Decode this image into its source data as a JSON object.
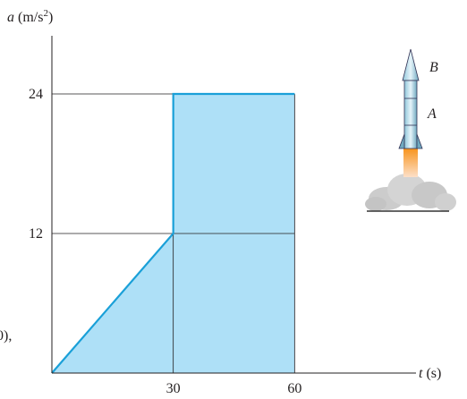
{
  "chart_data": {
    "type": "area",
    "y_label": [
      "a",
      "(m/s",
      "2",
      ")"
    ],
    "x_label": [
      "t",
      "(s)"
    ],
    "x": [
      0,
      30,
      30,
      60
    ],
    "values": [
      0,
      12,
      24,
      24
    ],
    "color": "#1aa0d8",
    "fill": "#aee0f7",
    "xlim": [
      0,
      90
    ],
    "ylim": [
      0,
      29
    ],
    "xticks": [
      30,
      60
    ],
    "yticks": [
      12,
      24
    ],
    "figure_labels": [
      "B",
      "A"
    ],
    "fragment": "0),"
  }
}
